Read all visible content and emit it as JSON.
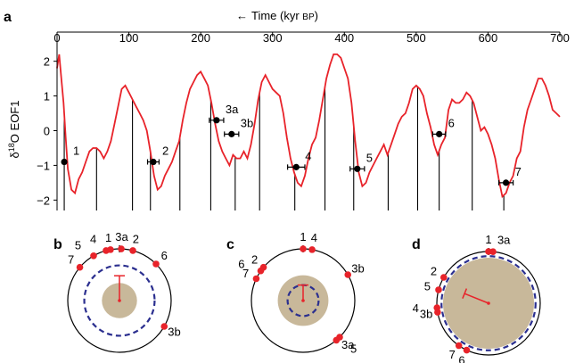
{
  "chart_data": [
    {
      "panel": "a",
      "type": "line",
      "xlabel_prefix": "←",
      "xlabel_main": "Time (kyr ",
      "xlabel_unit": "BP",
      "xlabel_close": ")",
      "ylabel_prefix": "δ",
      "ylabel_sup": "18",
      "ylabel_main": "O EOF1",
      "xlim": [
        0,
        700
      ],
      "ylim": [
        -2.3,
        2.3
      ],
      "xticks": [
        0,
        100,
        200,
        300,
        400,
        500,
        600,
        700
      ],
      "yticks": [
        2,
        1,
        0,
        -1,
        -2
      ],
      "ytick_labels": [
        "2",
        "1",
        "0",
        "−1",
        "−2"
      ],
      "series_color": "#e8232a",
      "series": [
        {
          "x": [
            0,
            3,
            6,
            9,
            12,
            15,
            20,
            25,
            30,
            35,
            40,
            45,
            50,
            55,
            60,
            65,
            70,
            75,
            80,
            85,
            88,
            90,
            95,
            100,
            105,
            110,
            115,
            120,
            125,
            130,
            135,
            140,
            145,
            150,
            155,
            160,
            165,
            170,
            175,
            180,
            185,
            190,
            195,
            200,
            205,
            210,
            215,
            220,
            225,
            230,
            235,
            240,
            245,
            250,
            255,
            260,
            265,
            270,
            275,
            280,
            285,
            290,
            295,
            300,
            305,
            310,
            315,
            320,
            325,
            330,
            335,
            340,
            345,
            350,
            355,
            360,
            365,
            370,
            375,
            380,
            385,
            390,
            395,
            400,
            405,
            410,
            415,
            420,
            425,
            430,
            435,
            440,
            445,
            450,
            455,
            460,
            465,
            470,
            475,
            480,
            485,
            490,
            495,
            500,
            505,
            510,
            515,
            520,
            525,
            530,
            535,
            540,
            545,
            550,
            555,
            560,
            565,
            570,
            575,
            580,
            585,
            590,
            595,
            600,
            605,
            610,
            615,
            620,
            625,
            630,
            635,
            640,
            645,
            650,
            655,
            660,
            665,
            670,
            675,
            680,
            685,
            690,
            695,
            700
          ],
          "y": [
            1.8,
            2.2,
            1.5,
            0.8,
            -0.2,
            -1.1,
            -1.7,
            -1.8,
            -1.4,
            -1.2,
            -0.9,
            -0.6,
            -0.5,
            -0.5,
            -0.6,
            -0.8,
            -0.6,
            -0.3,
            0.2,
            0.7,
            1.0,
            1.2,
            1.3,
            1.1,
            0.9,
            0.7,
            0.5,
            0.3,
            0.0,
            -0.6,
            -1.3,
            -1.7,
            -1.6,
            -1.3,
            -1.1,
            -0.9,
            -0.6,
            -0.3,
            0.3,
            0.8,
            1.2,
            1.4,
            1.6,
            1.7,
            1.5,
            1.3,
            0.8,
            0.2,
            -0.3,
            -0.6,
            -0.8,
            -1.0,
            -0.7,
            -0.8,
            -0.8,
            -0.6,
            -0.8,
            -0.4,
            0.2,
            0.9,
            1.4,
            1.6,
            1.4,
            1.2,
            1.1,
            1.0,
            0.5,
            -0.2,
            -0.8,
            -1.2,
            -1.5,
            -1.6,
            -1.3,
            -0.8,
            -0.4,
            -0.2,
            0.3,
            0.9,
            1.5,
            1.9,
            2.2,
            2.2,
            2.1,
            1.8,
            1.5,
            0.8,
            -0.3,
            -1.2,
            -1.6,
            -1.5,
            -1.2,
            -1.0,
            -0.8,
            -0.6,
            -0.4,
            -0.7,
            -0.4,
            -0.1,
            0.2,
            0.4,
            0.5,
            0.8,
            1.2,
            1.3,
            1.2,
            1.0,
            0.5,
            0.1,
            -0.4,
            -0.7,
            -0.4,
            -0.2,
            0.6,
            0.9,
            0.8,
            0.8,
            0.9,
            1.1,
            1.0,
            0.8,
            0.4,
            0.0,
            0.1,
            -0.1,
            -0.4,
            -0.8,
            -1.4,
            -1.9,
            -1.8,
            -1.5,
            -1.3,
            -0.8,
            -0.6,
            0.1,
            0.6,
            0.9,
            1.2,
            1.5,
            1.5,
            1.3,
            1.0,
            0.6,
            0.5,
            0.4
          ]
        }
      ],
      "vertical_lines_x": [
        10,
        55,
        105,
        130,
        171,
        214,
        248,
        282,
        331,
        373,
        413,
        461,
        502,
        532,
        578,
        622
      ],
      "points": [
        {
          "label": "1",
          "x": 10,
          "y": -0.9,
          "xerr": 0
        },
        {
          "label": "2",
          "x": 134,
          "y": -0.9,
          "xerr": 8
        },
        {
          "label": "3a",
          "x": 222,
          "y": 0.3,
          "xerr": 10
        },
        {
          "label": "3b",
          "x": 243,
          "y": -0.1,
          "xerr": 10
        },
        {
          "label": "4",
          "x": 333,
          "y": -1.05,
          "xerr": 12
        },
        {
          "label": "5",
          "x": 418,
          "y": -1.1,
          "xerr": 10
        },
        {
          "label": "6",
          "x": 532,
          "y": -0.1,
          "xerr": 9
        },
        {
          "label": "7",
          "x": 625,
          "y": -1.5,
          "xerr": 10
        }
      ]
    },
    {
      "panel": "b",
      "type": "circular",
      "points": [
        {
          "label": "1",
          "angle_deg": 350
        },
        {
          "label": "2",
          "angle_deg": 15
        },
        {
          "label": "3a",
          "angle_deg": 2
        },
        {
          "label": "3b",
          "angle_deg": 120
        },
        {
          "label": "4",
          "angle_deg": 345
        },
        {
          "label": "5",
          "angle_deg": 330
        },
        {
          "label": "6",
          "angle_deg": 45
        },
        {
          "label": "7",
          "angle_deg": 310
        }
      ],
      "mean_vector": {
        "angle_deg": 0,
        "length": 0.48
      },
      "confidence_radius": 0.34,
      "dashed_radius": 0.68
    },
    {
      "panel": "c",
      "type": "circular",
      "points": [
        {
          "label": "1",
          "angle_deg": 0
        },
        {
          "label": "2",
          "angle_deg": 310
        },
        {
          "label": "3a",
          "angle_deg": 135
        },
        {
          "label": "3b",
          "angle_deg": 60
        },
        {
          "label": "4",
          "angle_deg": 10
        },
        {
          "label": "5",
          "angle_deg": 140
        },
        {
          "label": "6",
          "angle_deg": 305
        },
        {
          "label": "7",
          "angle_deg": 295
        }
      ],
      "mean_vector": {
        "angle_deg": 0,
        "length": 0.3
      },
      "confidence_radius": 0.49,
      "dashed_radius": 0.3
    },
    {
      "panel": "d",
      "type": "circular",
      "points": [
        {
          "label": "1",
          "angle_deg": 0
        },
        {
          "label": "2",
          "angle_deg": 300
        },
        {
          "label": "3a",
          "angle_deg": 5
        },
        {
          "label": "3b",
          "angle_deg": 260
        },
        {
          "label": "4",
          "angle_deg": 265
        },
        {
          "label": "5",
          "angle_deg": 285
        },
        {
          "label": "6",
          "angle_deg": 205
        },
        {
          "label": "7",
          "angle_deg": 215
        }
      ],
      "mean_vector": {
        "angle_deg": 292,
        "length": 0.5
      },
      "confidence_radius": 0.88,
      "dashed_radius": 0.91
    }
  ]
}
